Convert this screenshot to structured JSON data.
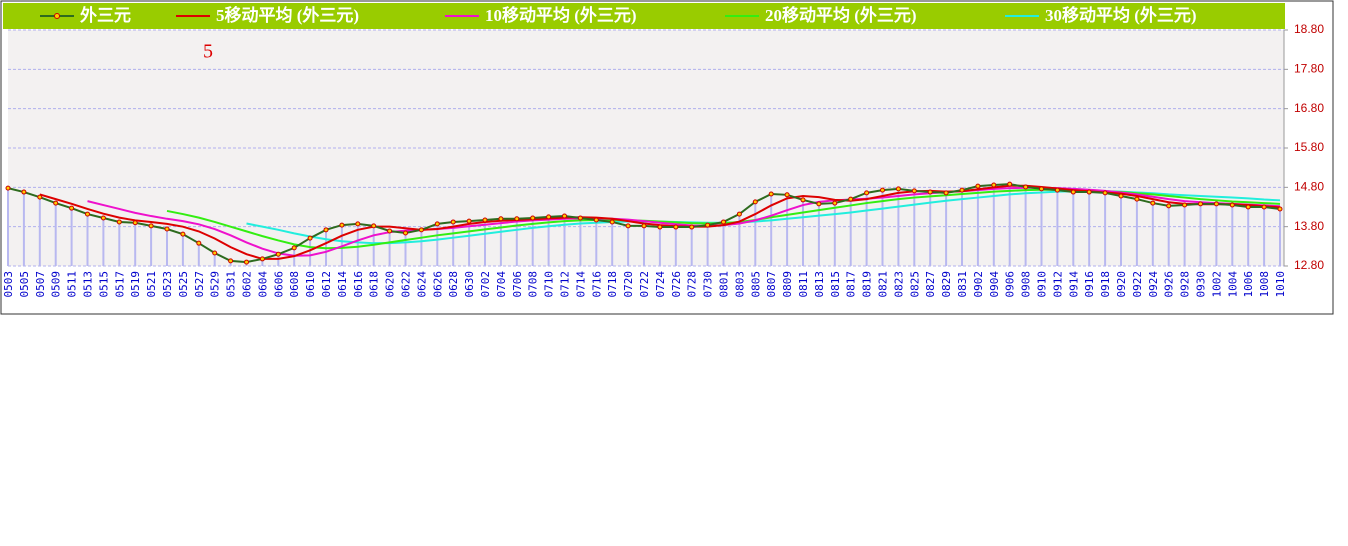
{
  "chart_data": {
    "type": "line",
    "annotation": "5",
    "categories": [
      "0503",
      "0505",
      "0507",
      "0509",
      "0511",
      "0513",
      "0515",
      "0517",
      "0519",
      "0521",
      "0523",
      "0525",
      "0527",
      "0529",
      "0531",
      "0602",
      "0604",
      "0606",
      "0608",
      "0610",
      "0612",
      "0614",
      "0616",
      "0618",
      "0620",
      "0622",
      "0624",
      "0626",
      "0628",
      "0630",
      "0702",
      "0704",
      "0706",
      "0708",
      "0710",
      "0712",
      "0714",
      "0716",
      "0718",
      "0720",
      "0722",
      "0724",
      "0726",
      "0728",
      "0730",
      "0801",
      "0803",
      "0805",
      "0807",
      "0809",
      "0811",
      "0813",
      "0815",
      "0817",
      "0819",
      "0821",
      "0823",
      "0825",
      "0827",
      "0829",
      "0831",
      "0902",
      "0904",
      "0906",
      "0908",
      "0910",
      "0912",
      "0914",
      "0916",
      "0918",
      "0920",
      "0922",
      "0924",
      "0926",
      "0928",
      "0930",
      "1002",
      "1004",
      "1006",
      "1008",
      "1010"
    ],
    "series": [
      {
        "name": "外三元",
        "color": "#2e6b1e",
        "values": [
          14.78,
          14.68,
          14.55,
          14.4,
          14.27,
          14.12,
          14.02,
          13.92,
          13.9,
          13.82,
          13.74,
          13.61,
          13.38,
          13.13,
          12.93,
          12.9,
          12.98,
          13.1,
          13.26,
          13.51,
          13.72,
          13.84,
          13.87,
          13.82,
          13.69,
          13.64,
          13.72,
          13.87,
          13.92,
          13.94,
          13.97,
          14.0,
          14.0,
          14.02,
          14.05,
          14.07,
          14.02,
          13.97,
          13.92,
          13.82,
          13.82,
          13.79,
          13.79,
          13.79,
          13.84,
          13.92,
          14.12,
          14.43,
          14.63,
          14.61,
          14.48,
          14.38,
          14.4,
          14.5,
          14.66,
          14.73,
          14.76,
          14.71,
          14.68,
          14.66,
          14.73,
          14.83,
          14.86,
          14.88,
          14.81,
          14.76,
          14.73,
          14.68,
          14.68,
          14.66,
          14.58,
          14.5,
          14.4,
          14.33,
          14.35,
          14.38,
          14.38,
          14.35,
          14.3,
          14.3,
          14.25
        ]
      },
      {
        "name": "5移动平均 (外三元)",
        "color": "#dd0000",
        "values": [
          null,
          null,
          14.62,
          14.5,
          14.38,
          14.25,
          14.13,
          14.03,
          13.96,
          13.92,
          13.87,
          13.8,
          13.68,
          13.5,
          13.28,
          13.1,
          12.98,
          12.98,
          13.05,
          13.2,
          13.38,
          13.57,
          13.72,
          13.8,
          13.8,
          13.76,
          13.72,
          13.74,
          13.8,
          13.87,
          13.92,
          13.95,
          13.97,
          13.99,
          14.01,
          14.03,
          14.04,
          14.03,
          14.0,
          13.94,
          13.88,
          13.84,
          13.81,
          13.8,
          13.8,
          13.84,
          13.93,
          14.12,
          14.34,
          14.52,
          14.58,
          14.55,
          14.48,
          14.46,
          14.5,
          14.58,
          14.66,
          14.7,
          14.71,
          14.69,
          14.7,
          14.75,
          14.8,
          14.84,
          14.84,
          14.81,
          14.77,
          14.73,
          14.7,
          14.67,
          14.64,
          14.58,
          14.5,
          14.42,
          14.38,
          14.37,
          14.37,
          14.37,
          14.35,
          14.32,
          14.29
        ]
      },
      {
        "name": "10移动平均 (外三元)",
        "color": "#ee11cc",
        "values": [
          null,
          null,
          null,
          null,
          null,
          14.45,
          14.35,
          14.25,
          14.15,
          14.07,
          14.0,
          13.94,
          13.86,
          13.74,
          13.58,
          13.4,
          13.24,
          13.12,
          13.06,
          13.07,
          13.16,
          13.3,
          13.45,
          13.58,
          13.66,
          13.7,
          13.72,
          13.74,
          13.77,
          13.81,
          13.85,
          13.89,
          13.93,
          13.96,
          13.98,
          14.0,
          14.01,
          14.01,
          14.0,
          13.98,
          13.94,
          13.9,
          13.86,
          13.83,
          13.82,
          13.84,
          13.88,
          13.96,
          14.08,
          14.22,
          14.35,
          14.43,
          14.47,
          14.49,
          14.51,
          14.54,
          14.58,
          14.62,
          14.65,
          14.68,
          14.7,
          14.73,
          14.76,
          14.78,
          14.79,
          14.79,
          14.78,
          14.76,
          14.74,
          14.71,
          14.67,
          14.62,
          14.56,
          14.5,
          14.45,
          14.42,
          14.4,
          14.38,
          14.36,
          14.34,
          14.32
        ]
      },
      {
        "name": "20移动平均 (外三元)",
        "color": "#33ee11",
        "values": [
          null,
          null,
          null,
          null,
          null,
          null,
          null,
          null,
          null,
          null,
          14.2,
          14.12,
          14.03,
          13.92,
          13.8,
          13.68,
          13.56,
          13.45,
          13.35,
          13.28,
          13.25,
          13.26,
          13.29,
          13.34,
          13.4,
          13.46,
          13.52,
          13.58,
          13.63,
          13.68,
          13.73,
          13.78,
          13.83,
          13.87,
          13.91,
          13.94,
          13.96,
          13.97,
          13.97,
          13.96,
          13.95,
          13.93,
          13.91,
          13.89,
          13.88,
          13.89,
          13.92,
          13.97,
          14.04,
          14.1,
          14.16,
          14.22,
          14.28,
          14.34,
          14.4,
          14.45,
          14.5,
          14.54,
          14.57,
          14.6,
          14.63,
          14.66,
          14.69,
          14.71,
          14.73,
          14.74,
          14.74,
          14.73,
          14.72,
          14.7,
          14.68,
          14.65,
          14.62,
          14.58,
          14.54,
          14.5,
          14.47,
          14.44,
          14.42,
          14.4,
          14.38
        ]
      },
      {
        "name": "30移动平均 (外三元)",
        "color": "#22eedd",
        "values": [
          null,
          null,
          null,
          null,
          null,
          null,
          null,
          null,
          null,
          null,
          null,
          null,
          null,
          null,
          null,
          13.88,
          13.8,
          13.72,
          13.63,
          13.55,
          13.48,
          13.43,
          13.4,
          13.38,
          13.38,
          13.4,
          13.43,
          13.47,
          13.52,
          13.57,
          13.62,
          13.67,
          13.72,
          13.77,
          13.81,
          13.85,
          13.88,
          13.9,
          13.92,
          13.93,
          13.93,
          13.93,
          13.92,
          13.91,
          13.9,
          13.9,
          13.91,
          13.93,
          13.96,
          14.0,
          14.04,
          14.08,
          14.12,
          14.16,
          14.21,
          14.26,
          14.31,
          14.36,
          14.41,
          14.46,
          14.5,
          14.54,
          14.58,
          14.62,
          14.65,
          14.67,
          14.69,
          14.7,
          14.7,
          14.7,
          14.69,
          14.67,
          14.65,
          14.62,
          14.6,
          14.58,
          14.56,
          14.54,
          14.52,
          14.49,
          14.47
        ]
      }
    ],
    "ylim": [
      12.8,
      18.8
    ],
    "yticks": [
      {
        "value": 12.8,
        "label": "12.80"
      },
      {
        "value": 13.8,
        "label": "13.80"
      },
      {
        "value": 14.8,
        "label": "14.80"
      },
      {
        "value": 15.8,
        "label": "15.80"
      },
      {
        "value": 16.8,
        "label": "16.80"
      },
      {
        "value": 17.8,
        "label": "17.80"
      },
      {
        "value": 18.8,
        "label": "18.80"
      }
    ],
    "grid": true,
    "bar_color": "#b8b8f0"
  }
}
